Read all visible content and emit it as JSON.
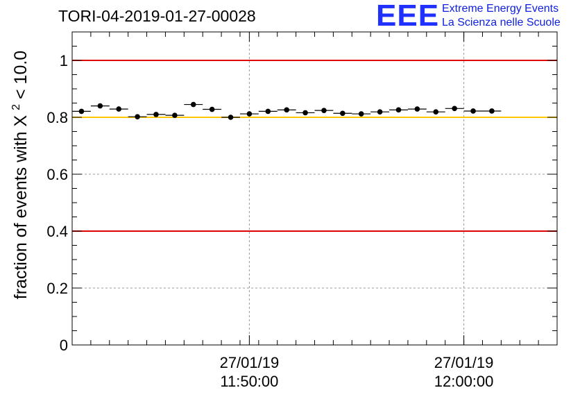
{
  "chart_data": {
    "type": "scatter",
    "title": "TORI-04-2019-01-27-00028",
    "ylabel": "fraction of events with X",
    "ylabel_superscript": "2",
    "ylabel_suffix": " < 10.0",
    "xlabel": "",
    "ylim": [
      0,
      1.1
    ],
    "yticks": [
      "0",
      "0.2",
      "0.4",
      "0.6",
      "0.8",
      "1"
    ],
    "ytick_values": [
      0,
      0.2,
      0.4,
      0.6,
      0.8,
      1.0
    ],
    "xticks": [
      {
        "index": 9.5,
        "date": "27/01/19",
        "time": "11:50:00"
      },
      {
        "index": 21.0,
        "date": "27/01/19",
        "time": "12:00:00"
      }
    ],
    "x_count": 26,
    "values": [
      0.821,
      0.84,
      0.829,
      0.802,
      0.81,
      0.807,
      0.845,
      0.828,
      0.8,
      0.812,
      0.821,
      0.826,
      0.816,
      0.824,
      0.814,
      0.812,
      0.819,
      0.826,
      0.829,
      0.819,
      0.831,
      0.822,
      0.822
    ],
    "reference_lines": [
      {
        "y": 1.0,
        "color": "#e00000"
      },
      {
        "y": 0.4,
        "color": "#e00000"
      },
      {
        "y": 0.8,
        "color": "#ffc800"
      }
    ],
    "grid": true
  },
  "logo": {
    "mark": "EEE",
    "line1": "Extreme Energy Events",
    "line2": "La Scienza nelle Scuole"
  }
}
